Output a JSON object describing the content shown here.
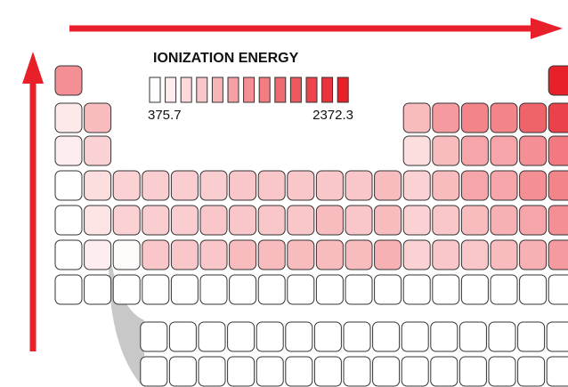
{
  "legend": {
    "title": "IONIZATION ENERGY",
    "min": 375.7,
    "max": 2372.3
  }
}
